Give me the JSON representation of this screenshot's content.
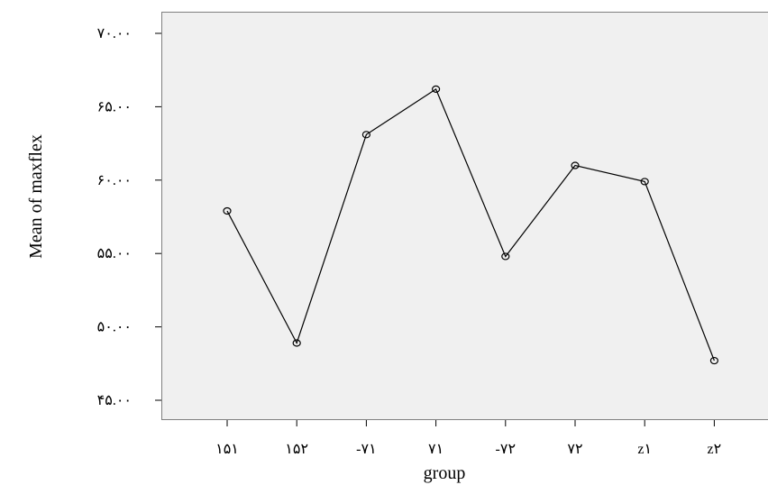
{
  "chart_data": {
    "type": "line",
    "xlabel": "group",
    "ylabel": "Mean of maxflex",
    "categories": [
      "۱۵۱",
      "۱۵۲",
      "-۷۱",
      "۷۱",
      "-۷۲",
      "۷۲",
      "z۱",
      "z۲"
    ],
    "values": [
      57.9,
      48.9,
      63.1,
      66.2,
      54.8,
      61.0,
      59.9,
      47.7
    ],
    "y_ticks": [
      45,
      50,
      55,
      60,
      65,
      70
    ],
    "y_tick_labels": [
      "۴۵.۰۰",
      "۵۰.۰۰",
      "۵۵.۰۰",
      "۶۰.۰۰",
      "۶۵.۰۰",
      "۷۰.۰۰"
    ],
    "ylim": [
      44.0,
      71.5
    ],
    "grid": false,
    "marker": "open-circle",
    "colors": {
      "plot_background": "#f0f0f0",
      "line": "#000000",
      "frame": "#7f7f7f"
    }
  }
}
